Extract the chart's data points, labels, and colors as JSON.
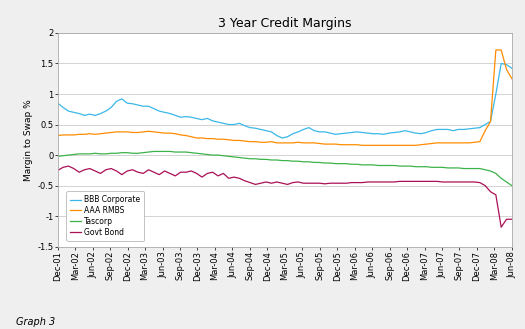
{
  "title": "3 Year Credit Margins",
  "ylabel": "Margin to Swap %",
  "footnote": "Graph 3",
  "ylim": [
    -1.5,
    2.0
  ],
  "yticks": [
    -1.5,
    -1.0,
    -0.5,
    0.0,
    0.5,
    1.0,
    1.5,
    2.0
  ],
  "x_labels": [
    "Dec-01",
    "Mar-02",
    "Jun-02",
    "Sep-02",
    "Dec-02",
    "Mar-03",
    "Jun-03",
    "Sep-03",
    "Dec-03",
    "Mar-04",
    "Jun-04",
    "Sep-04",
    "Dec-04",
    "Mar-05",
    "Jun-05",
    "Sep-05",
    "Dec-05",
    "Mar-06",
    "Jun-06",
    "Sep-06",
    "Dec-06",
    "Mar-07",
    "Jun-07",
    "Sep-07",
    "Dec-07",
    "Mar-08",
    "Jun-08"
  ],
  "series": {
    "BBB Corporate": {
      "color": "#3BB8E8",
      "values": [
        0.85,
        0.78,
        0.72,
        0.7,
        0.68,
        0.65,
        0.67,
        0.65,
        0.68,
        0.72,
        0.78,
        0.88,
        0.92,
        0.85,
        0.84,
        0.82,
        0.8,
        0.8,
        0.76,
        0.72,
        0.7,
        0.68,
        0.65,
        0.62,
        0.63,
        0.62,
        0.6,
        0.58,
        0.6,
        0.56,
        0.54,
        0.52,
        0.5,
        0.5,
        0.52,
        0.48,
        0.45,
        0.44,
        0.42,
        0.4,
        0.38,
        0.32,
        0.28,
        0.3,
        0.35,
        0.38,
        0.42,
        0.45,
        0.4,
        0.38,
        0.38,
        0.36,
        0.34,
        0.35,
        0.36,
        0.37,
        0.38,
        0.37,
        0.36,
        0.35,
        0.35,
        0.34,
        0.36,
        0.37,
        0.38,
        0.4,
        0.38,
        0.36,
        0.35,
        0.37,
        0.4,
        0.42,
        0.42,
        0.42,
        0.4,
        0.42,
        0.42,
        0.43,
        0.44,
        0.45,
        0.5,
        0.55,
        1.0,
        1.5,
        1.48,
        1.42
      ]
    },
    "AAA RMBS": {
      "color": "#FF8C00",
      "values": [
        0.32,
        0.33,
        0.33,
        0.33,
        0.34,
        0.34,
        0.35,
        0.34,
        0.35,
        0.36,
        0.37,
        0.38,
        0.38,
        0.38,
        0.37,
        0.37,
        0.38,
        0.39,
        0.38,
        0.37,
        0.36,
        0.36,
        0.35,
        0.33,
        0.32,
        0.3,
        0.28,
        0.28,
        0.27,
        0.27,
        0.26,
        0.26,
        0.25,
        0.24,
        0.24,
        0.23,
        0.22,
        0.22,
        0.21,
        0.21,
        0.22,
        0.2,
        0.2,
        0.2,
        0.2,
        0.21,
        0.2,
        0.2,
        0.2,
        0.19,
        0.18,
        0.18,
        0.18,
        0.17,
        0.17,
        0.17,
        0.17,
        0.16,
        0.16,
        0.16,
        0.16,
        0.16,
        0.16,
        0.16,
        0.16,
        0.16,
        0.16,
        0.16,
        0.17,
        0.18,
        0.19,
        0.2,
        0.2,
        0.2,
        0.2,
        0.2,
        0.2,
        0.2,
        0.21,
        0.22,
        0.4,
        0.55,
        1.72,
        1.72,
        1.4,
        1.25
      ]
    },
    "Tascorp": {
      "color": "#3CB34A",
      "values": [
        -0.02,
        -0.01,
        0.0,
        0.01,
        0.02,
        0.02,
        0.02,
        0.03,
        0.02,
        0.02,
        0.03,
        0.03,
        0.04,
        0.04,
        0.03,
        0.03,
        0.04,
        0.05,
        0.06,
        0.06,
        0.06,
        0.06,
        0.05,
        0.05,
        0.05,
        0.04,
        0.03,
        0.02,
        0.01,
        0.0,
        0.0,
        -0.01,
        -0.02,
        -0.03,
        -0.04,
        -0.05,
        -0.06,
        -0.06,
        -0.07,
        -0.07,
        -0.08,
        -0.08,
        -0.09,
        -0.09,
        -0.1,
        -0.1,
        -0.11,
        -0.11,
        -0.12,
        -0.12,
        -0.13,
        -0.13,
        -0.14,
        -0.14,
        -0.14,
        -0.15,
        -0.15,
        -0.16,
        -0.16,
        -0.16,
        -0.17,
        -0.17,
        -0.17,
        -0.17,
        -0.18,
        -0.18,
        -0.18,
        -0.19,
        -0.19,
        -0.19,
        -0.2,
        -0.2,
        -0.2,
        -0.21,
        -0.21,
        -0.21,
        -0.22,
        -0.22,
        -0.22,
        -0.22,
        -0.24,
        -0.26,
        -0.3,
        -0.38,
        -0.44,
        -0.5
      ]
    },
    "Govt Bond": {
      "color": "#AA1055",
      "values": [
        -0.25,
        -0.2,
        -0.18,
        -0.22,
        -0.28,
        -0.24,
        -0.22,
        -0.26,
        -0.3,
        -0.24,
        -0.22,
        -0.26,
        -0.32,
        -0.26,
        -0.24,
        -0.28,
        -0.3,
        -0.24,
        -0.28,
        -0.32,
        -0.26,
        -0.3,
        -0.34,
        -0.28,
        -0.28,
        -0.26,
        -0.3,
        -0.36,
        -0.3,
        -0.28,
        -0.34,
        -0.3,
        -0.38,
        -0.36,
        -0.38,
        -0.42,
        -0.45,
        -0.48,
        -0.46,
        -0.44,
        -0.46,
        -0.44,
        -0.46,
        -0.48,
        -0.45,
        -0.44,
        -0.46,
        -0.46,
        -0.46,
        -0.46,
        -0.47,
        -0.46,
        -0.46,
        -0.46,
        -0.46,
        -0.45,
        -0.45,
        -0.45,
        -0.44,
        -0.44,
        -0.44,
        -0.44,
        -0.44,
        -0.44,
        -0.43,
        -0.43,
        -0.43,
        -0.43,
        -0.43,
        -0.43,
        -0.43,
        -0.43,
        -0.44,
        -0.44,
        -0.44,
        -0.44,
        -0.44,
        -0.44,
        -0.44,
        -0.45,
        -0.5,
        -0.6,
        -0.65,
        -1.18,
        -1.05,
        -1.05
      ]
    }
  },
  "background_color": "#EFEFEF",
  "plot_bg_color": "#FFFFFF",
  "outer_border_color": "#BBBBBB",
  "grid_color": "#CCCCCC"
}
